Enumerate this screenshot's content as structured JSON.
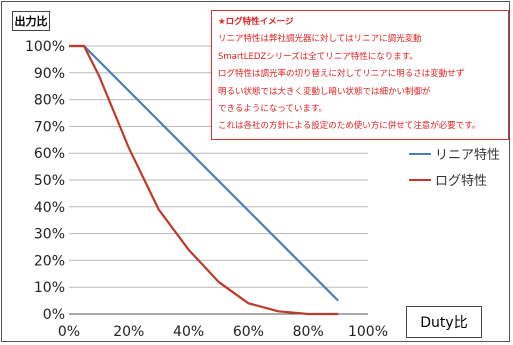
{
  "chart_data": {
    "type": "line",
    "ylabel": "出力比",
    "xlabel": "Duty比",
    "xlim": [
      0,
      100
    ],
    "ylim": [
      0,
      100
    ],
    "x_ticks": [
      "0%",
      "20%",
      "40%",
      "60%",
      "80%",
      "100%"
    ],
    "y_ticks": [
      "0%",
      "10%",
      "20%",
      "30%",
      "40%",
      "50%",
      "60%",
      "70%",
      "80%",
      "90%",
      "100%"
    ],
    "grid": true,
    "legend_position": "right",
    "series": [
      {
        "name": "リニア特性",
        "color": "#4a7ebb",
        "x": [
          0,
          5,
          90
        ],
        "y": [
          100,
          100,
          5
        ]
      },
      {
        "name": "ログ特性",
        "color": "#c0392b",
        "x": [
          0,
          5,
          10,
          20,
          30,
          40,
          50,
          60,
          70,
          80,
          90
        ],
        "y": [
          100,
          100,
          89,
          62,
          39,
          24,
          12,
          4,
          1,
          0,
          0
        ]
      }
    ]
  },
  "note": {
    "title": "★ログ特性イメージ",
    "lines": [
      "リニア特性は弊社調光器に対してはリニアに調光変動",
      "SmartLEDZシリーズは全てリニア特性になります。",
      "ログ特性は調光率の切り替えに対してリニアに明るさは変動せず",
      "明るい状態では大きく変動し暗い状態では細かい制御が",
      "できるようになっています。",
      "これは各社の方針による設定のため使い方に併せて注意が必要です。"
    ]
  }
}
